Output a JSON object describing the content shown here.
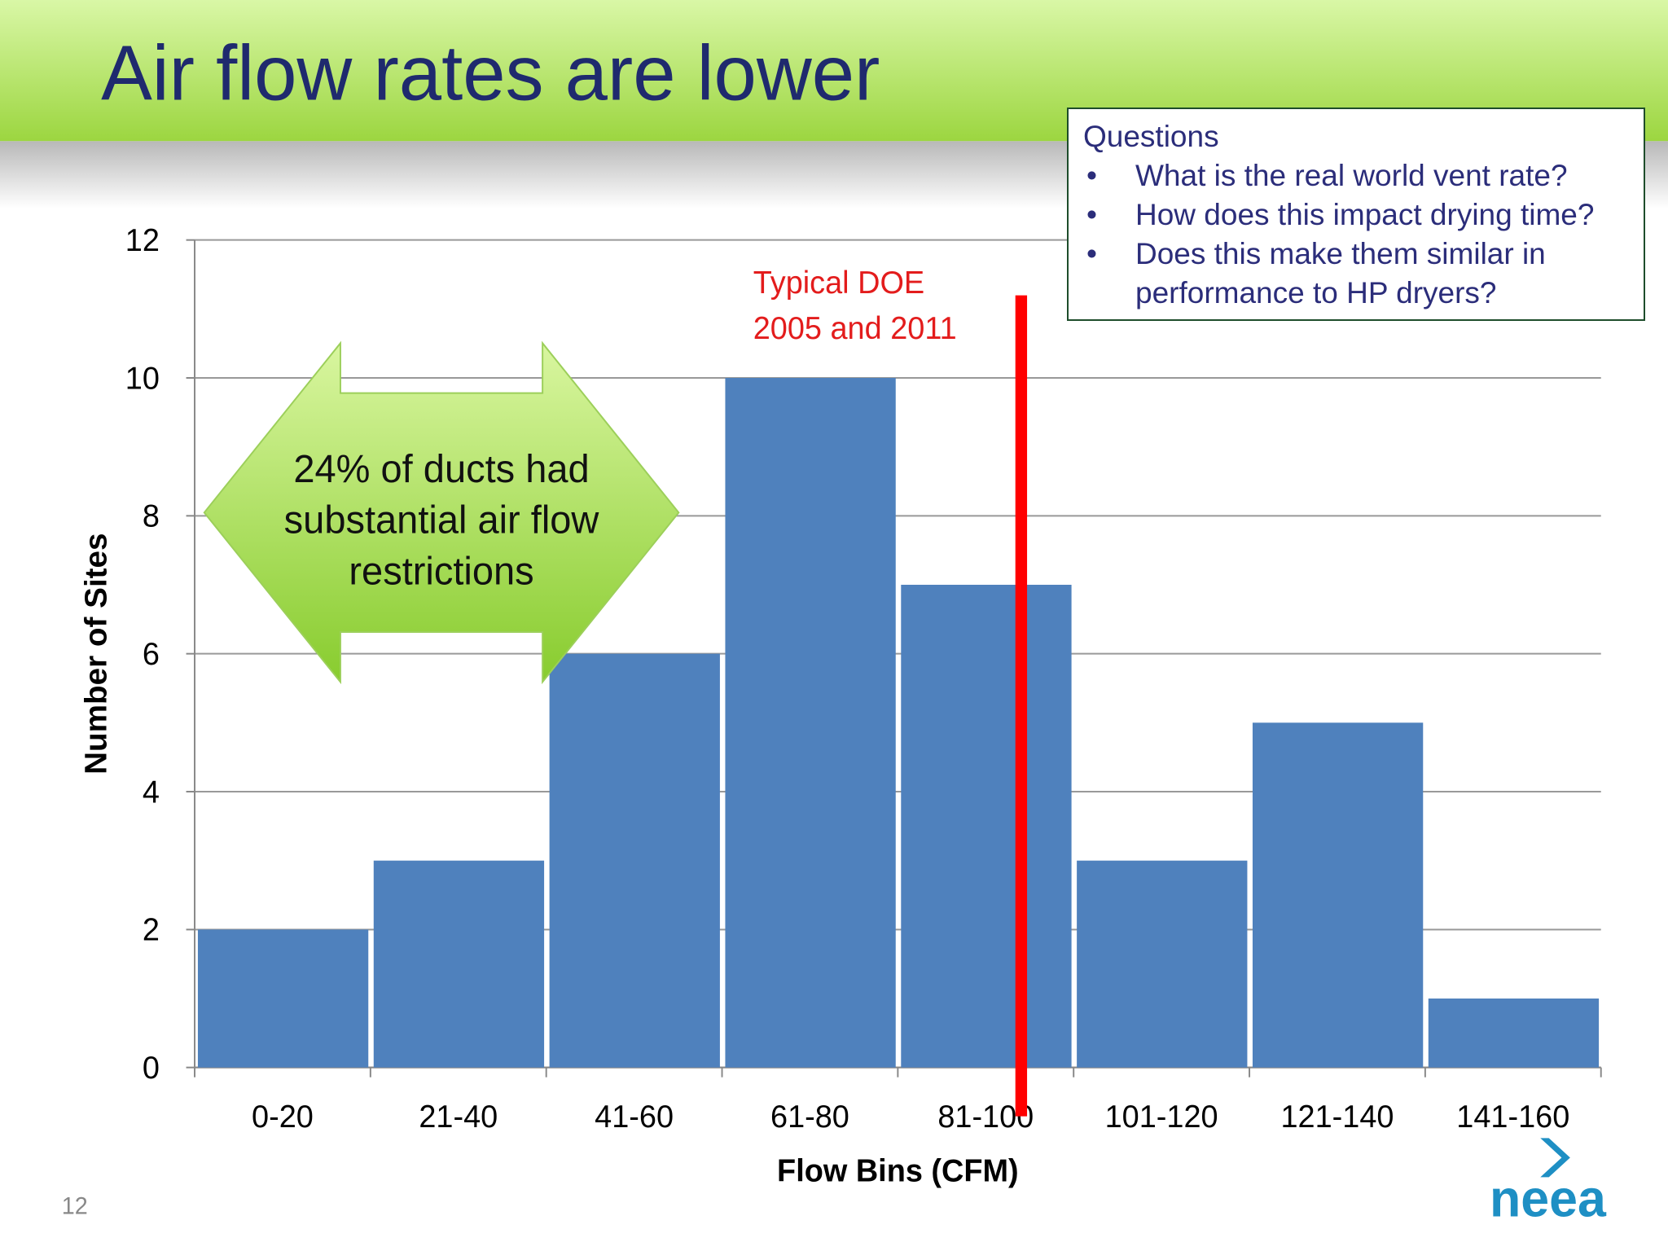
{
  "chart_data": {
    "type": "bar",
    "title": "Air flow rates are lower",
    "categories": [
      "0-20",
      "21-40",
      "41-60",
      "61-80",
      "81-100",
      "101-120",
      "121-140",
      "141-160"
    ],
    "values": [
      2,
      3,
      6,
      10,
      7,
      3,
      5,
      1
    ],
    "color": "#4f81bd",
    "ylim": [
      0,
      12
    ],
    "yticks": [
      0,
      2,
      4,
      6,
      8,
      10,
      12
    ],
    "grid": true,
    "xlabel": "Flow Bins (CFM)",
    "ylabel": "Number of Sites",
    "annotation": [
      "Typical DOE",
      "2005 and 2011"
    ],
    "callout": [
      "24% of ducts had",
      "substantial air flow",
      "restrictions"
    ]
  },
  "questions": {
    "title": "Questions",
    "items": [
      "What is the real world vent rate?",
      "How does this impact drying time?",
      "Does this make them similar in performance to HP dryers?"
    ]
  },
  "page_number": "12",
  "logo": "neea"
}
